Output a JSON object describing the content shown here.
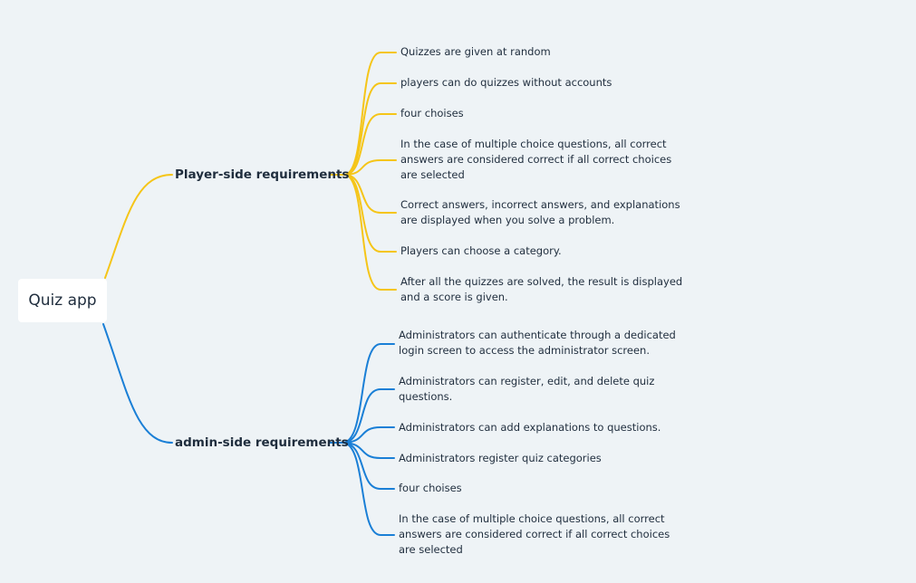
{
  "root": {
    "label": "Quiz app"
  },
  "branches": [
    {
      "label": "Player-side requirements",
      "color": "#f5c518",
      "items": [
        "Quizzes are given at random",
        "players can do quizzes without accounts",
        "four choises",
        "In the case of multiple choice questions, all correct answers are considered correct if all correct choices are selected",
        "Correct answers, incorrect answers, and explanations are displayed when you solve a problem.",
        "Players can choose a category.",
        "After all the quizzes are solved, the result is displayed and a score is given."
      ]
    },
    {
      "label": "admin-side requirements",
      "color": "#1a7fd6",
      "items": [
        "Administrators can authenticate through a dedicated login screen to access the administrator screen.",
        "Administrators can register, edit, and delete quiz questions.",
        "Administrators can add explanations to questions.",
        "Administrators register quiz categories",
        "four choises",
        "In the case of multiple choice questions, all correct answers are considered correct if all correct choices are selected"
      ]
    }
  ]
}
